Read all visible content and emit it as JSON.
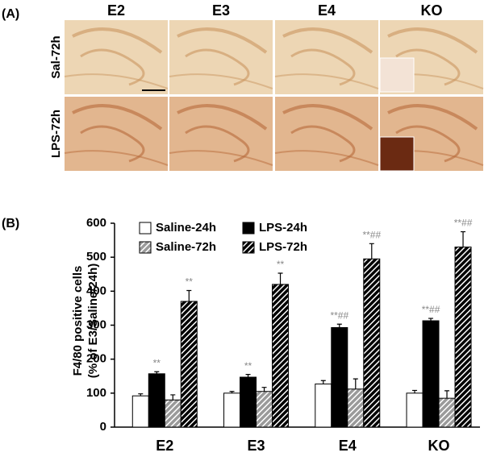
{
  "panel_a": {
    "label": "(A)",
    "columns": [
      "E2",
      "E3",
      "E4",
      "KO"
    ],
    "rows": [
      "Sal-72h",
      "LPS-72h"
    ]
  },
  "chart_data": {
    "type": "bar",
    "panel_label": "(B)",
    "y_label": [
      "F4/80 positive cells",
      "(% of E3/Saline/24h)"
    ],
    "categories": [
      "E2",
      "E3",
      "E4",
      "KO"
    ],
    "series": [
      {
        "name": "Saline-24h",
        "color": "#ffffff",
        "hatch": false,
        "values": [
          92,
          100,
          127,
          100
        ],
        "errors": [
          6,
          5,
          10,
          8
        ]
      },
      {
        "name": "LPS-24h",
        "color": "#000000",
        "hatch": false,
        "values": [
          157,
          147,
          293,
          313
        ],
        "errors": [
          6,
          8,
          10,
          7
        ],
        "annotations": [
          "**",
          "**",
          "**##",
          "**##"
        ]
      },
      {
        "name": "Saline-72h",
        "color": "#9a9a9a",
        "hatch": true,
        "values": [
          80,
          105,
          112,
          85
        ],
        "errors": [
          15,
          12,
          30,
          22
        ]
      },
      {
        "name": "LPS-72h",
        "color": "#000000",
        "hatch": true,
        "values": [
          370,
          420,
          495,
          530
        ],
        "errors": [
          32,
          33,
          45,
          45
        ],
        "annotations": [
          "**",
          "**",
          "**##",
          "**##"
        ]
      }
    ],
    "ylim": [
      0,
      600
    ],
    "yticks": [
      0,
      100,
      200,
      300,
      400,
      500,
      600
    ]
  }
}
